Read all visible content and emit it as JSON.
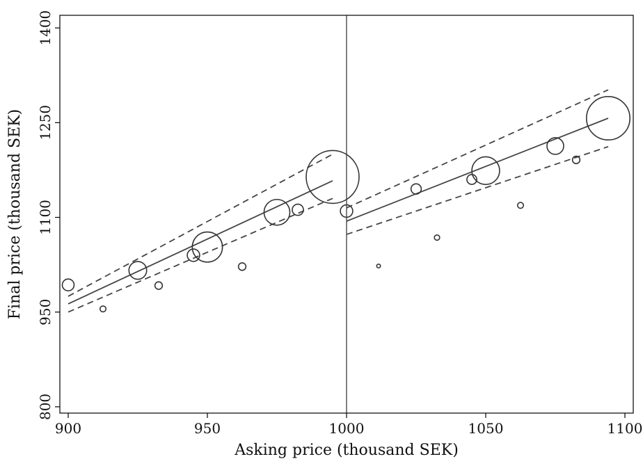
{
  "chart_data": {
    "type": "scatter",
    "title": "",
    "xlabel": "Asking price (thousand SEK)",
    "ylabel": "Final price (thousand SEK)",
    "xlim": [
      897,
      1103
    ],
    "ylim": [
      790,
      1420
    ],
    "x_ticks": [
      900,
      950,
      1000,
      1050,
      1100
    ],
    "y_ticks": [
      800,
      950,
      1100,
      1250,
      1400
    ],
    "x_tick_labels": [
      "900",
      "950",
      "1000",
      "1050",
      "1100"
    ],
    "y_tick_labels": [
      "800",
      "950",
      "1100",
      "1250",
      "1400"
    ],
    "grid": false,
    "legend": "none",
    "cutoff_x": 1000,
    "colors": {
      "line": "#444444",
      "marker": "#333333",
      "frame": "#000000"
    },
    "points": [
      {
        "x": 900,
        "y": 993,
        "weight": 0.2
      },
      {
        "x": 912.5,
        "y": 955,
        "weight": 0.05
      },
      {
        "x": 925,
        "y": 1016,
        "weight": 0.45
      },
      {
        "x": 932.5,
        "y": 992,
        "weight": 0.08
      },
      {
        "x": 945,
        "y": 1040,
        "weight": 0.22
      },
      {
        "x": 950,
        "y": 1053,
        "weight": 1.3
      },
      {
        "x": 962.5,
        "y": 1022,
        "weight": 0.08
      },
      {
        "x": 975,
        "y": 1108,
        "weight": 0.95
      },
      {
        "x": 982.5,
        "y": 1112,
        "weight": 0.18
      },
      {
        "x": 995,
        "y": 1164,
        "weight": 4.0
      },
      {
        "x": 1000,
        "y": 1110,
        "weight": 0.22
      },
      {
        "x": 1011.5,
        "y": 1023,
        "weight": 0.02
      },
      {
        "x": 1025,
        "y": 1145,
        "weight": 0.15
      },
      {
        "x": 1032.5,
        "y": 1068,
        "weight": 0.04
      },
      {
        "x": 1045,
        "y": 1160,
        "weight": 0.14
      },
      {
        "x": 1050,
        "y": 1174,
        "weight": 1.1
      },
      {
        "x": 1062.5,
        "y": 1119,
        "weight": 0.05
      },
      {
        "x": 1075,
        "y": 1213,
        "weight": 0.4
      },
      {
        "x": 1082.5,
        "y": 1191,
        "weight": 0.08
      },
      {
        "x": 1094,
        "y": 1257,
        "weight": 2.7
      }
    ],
    "fits": [
      {
        "segment": "left",
        "x": [
          900,
          995
        ],
        "fit": [
          963,
          1158
        ],
        "ci_lower": [
          950,
          1130
        ],
        "ci_upper": [
          975,
          1200
        ]
      },
      {
        "segment": "right",
        "x": [
          1000,
          1094
        ],
        "fit": [
          1094,
          1257
        ],
        "ci_lower": [
          1073,
          1212
        ],
        "ci_upper": [
          1115,
          1302
        ]
      }
    ]
  }
}
